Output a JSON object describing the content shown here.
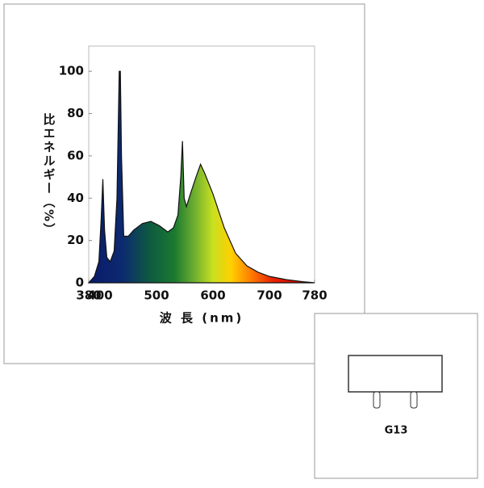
{
  "chart_data": {
    "type": "area",
    "x_label": "波 長 (nm)",
    "y_label": "比エネルギー（%）",
    "x": [
      380,
      390,
      398,
      402,
      405,
      408,
      412,
      418,
      425,
      430,
      434,
      436,
      438,
      442,
      450,
      460,
      475,
      490,
      505,
      520,
      530,
      538,
      543,
      546,
      549,
      553,
      560,
      570,
      578,
      585,
      600,
      620,
      640,
      660,
      680,
      700,
      730,
      760,
      780
    ],
    "values": [
      0,
      3,
      10,
      30,
      49,
      25,
      12,
      10,
      15,
      40,
      100,
      100,
      60,
      22,
      22,
      25,
      28,
      29,
      27,
      24,
      26,
      32,
      50,
      67,
      40,
      36,
      42,
      50,
      56,
      52,
      42,
      26,
      14,
      8,
      5,
      3,
      1.5,
      0.5,
      0
    ],
    "color": "#111111",
    "xlim": [
      380,
      780
    ],
    "xticks": [
      380,
      400,
      500,
      600,
      700,
      780
    ],
    "ylim": [
      0,
      110
    ],
    "yticks": [
      0,
      20,
      40,
      60,
      80,
      100
    ]
  },
  "lamp_base": {
    "label": "G13"
  }
}
